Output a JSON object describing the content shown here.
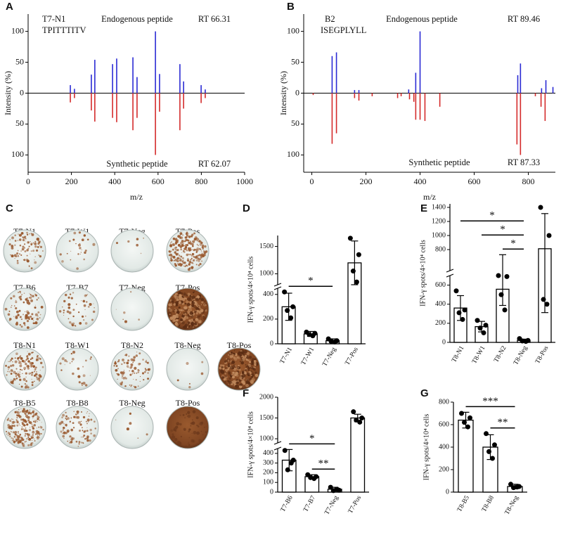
{
  "chart_data": [
    {
      "panel": "A",
      "type": "mirror",
      "label": "T7-N1",
      "sequence": "TPITTTITV",
      "top_label": "Endogenous peptide",
      "top_rt": "RT 66.31",
      "bottom_label": "Synthetic peptide",
      "bottom_rt": "RT 62.07",
      "x_label": "m/z",
      "y_label": "Intensity (%)",
      "xlim": [
        0,
        1000
      ],
      "xticks": [
        0,
        200,
        400,
        600,
        800,
        1000
      ],
      "ylim": [
        -128,
        128
      ],
      "yticks": [
        100,
        50,
        0,
        {
          "value": -50,
          "label": "50"
        },
        {
          "value": -100,
          "label": "100"
        }
      ],
      "series": [
        {
          "color": "#2a2ad4",
          "x": [
            195,
            214,
            292,
            308,
            390,
            409,
            484,
            503,
            588,
            607,
            701,
            718,
            799,
            818
          ],
          "values": [
            13,
            7,
            30,
            54,
            47,
            56,
            58,
            26,
            100,
            31,
            47,
            19,
            13,
            6
          ]
        },
        {
          "color": "#d42a2a",
          "x": [
            195,
            214,
            292,
            308,
            390,
            409,
            484,
            503,
            588,
            607,
            701,
            718,
            799,
            818
          ],
          "values": [
            -15,
            -8,
            -28,
            -46,
            -40,
            -47,
            -60,
            -40,
            -100,
            -30,
            -60,
            -25,
            -16,
            -8
          ]
        }
      ]
    },
    {
      "panel": "B",
      "type": "mirror",
      "label": "B2",
      "sequence": "ISEGPLYLL",
      "top_label": "Endogenous peptide",
      "top_rt": "RT 89.46",
      "bottom_label": "Synthetic peptide",
      "bottom_rt": "RT 87.33",
      "x_label": "m/z",
      "y_label": "Intensity (%)",
      "xlim": [
        -30,
        900
      ],
      "xticks": [
        0,
        200,
        400,
        600,
        800
      ],
      "ylim": [
        -128,
        128
      ],
      "yticks": [
        100,
        50,
        0,
        {
          "value": -50,
          "label": "50"
        },
        {
          "value": -100,
          "label": "100"
        }
      ],
      "series": [
        {
          "color": "#2a2ad4",
          "x": [
            75,
            91,
            158,
            174,
            358,
            384,
            400,
            761,
            771,
            849,
            865,
            891
          ],
          "values": [
            60,
            66,
            5,
            5,
            6,
            33,
            100,
            29,
            48,
            8,
            21,
            10
          ]
        },
        {
          "color": "#d42a2a",
          "x": [
            5,
            75,
            91,
            158,
            174,
            223,
            317,
            330,
            361,
            377,
            384,
            400,
            418,
            473,
            758,
            771,
            826,
            847,
            862
          ],
          "values": [
            -3,
            -82,
            -65,
            -8,
            -12,
            -5,
            -8,
            -5,
            -10,
            -14,
            -43,
            -43,
            -45,
            -22,
            -83,
            -100,
            -5,
            -22,
            -45
          ]
        }
      ]
    },
    {
      "panel": "D",
      "type": "bar",
      "y_label": "IFN-γ spots/4×10⁴ cells",
      "categories": [
        "T7-N1",
        "T7-W1",
        "T7-Neg",
        "T7-Pos"
      ],
      "values": [
        300,
        80,
        25,
        1200
      ],
      "errors": [
        110,
        20,
        15,
        400
      ],
      "points": [
        [
          420,
          300,
          270,
          210
        ],
        [
          95,
          85,
          75,
          65
        ],
        [
          40,
          25,
          20,
          15
        ],
        [
          1650,
          1350,
          1050,
          850
        ]
      ],
      "ylim": [
        [
          0,
          450
        ],
        [
          800,
          1700
        ]
      ],
      "yticks": [
        0,
        200,
        400,
        1000,
        1500
      ],
      "significance": [
        {
          "label": "*",
          "pair": [
            0,
            2
          ]
        }
      ]
    },
    {
      "panel": "E",
      "type": "bar",
      "y_label": "IFN-γ spots/4×10⁴ cells",
      "categories": [
        "T8-N1",
        "T8-W1",
        "T8-N2",
        "T8-Neg",
        "T8-Pos"
      ],
      "values": [
        360,
        165,
        557,
        21,
        812
      ],
      "errors": [
        130,
        55,
        170,
        13,
        500
      ],
      "points": [
        [
          540,
          340,
          310,
          240
        ],
        [
          230,
          180,
          150,
          100
        ],
        [
          700,
          690,
          500,
          340
        ],
        [
          40,
          20,
          15,
          10
        ],
        [
          1400,
          1000,
          450,
          400
        ]
      ],
      "ylim": [
        [
          0,
          700
        ],
        [
          500,
          1450
        ]
      ],
      "yticks": [
        0,
        200,
        400,
        600,
        800,
        1000,
        1200,
        1400
      ],
      "significance": [
        {
          "label": "*",
          "pair": [
            2,
            3
          ]
        },
        {
          "label": "*",
          "pair": [
            1,
            3
          ]
        },
        {
          "label": "*",
          "pair": [
            0,
            3
          ]
        }
      ]
    },
    {
      "panel": "F",
      "type": "bar",
      "y_label": "IFN-γ spots/4×10⁴ cells",
      "categories": [
        "T7-B6",
        "T7-B7",
        "T7-Neg",
        "T7-Pos"
      ],
      "values": [
        330,
        160,
        30,
        1500
      ],
      "errors": [
        110,
        20,
        20,
        90
      ],
      "points": [
        [
          430,
          330,
          230,
          300
        ],
        [
          180,
          160,
          150,
          140
        ],
        [
          50,
          20,
          15,
          30
        ],
        [
          1650,
          1500,
          1450,
          1400
        ]
      ],
      "ylim": [
        [
          0,
          450
        ],
        [
          900,
          2000
        ]
      ],
      "yticks": [
        0,
        100,
        200,
        300,
        400,
        1000,
        1500,
        2000
      ],
      "significance": [
        {
          "label": "**",
          "pair": [
            1,
            2
          ]
        },
        {
          "label": "*",
          "pair": [
            0,
            2
          ]
        }
      ]
    },
    {
      "panel": "G",
      "type": "bar",
      "y_label": "IFN-γ spots/4×10⁴ cells",
      "categories": [
        "T8-B5",
        "T8-B8",
        "T8-Neg"
      ],
      "values": [
        640,
        400,
        50
      ],
      "errors": [
        70,
        110,
        20
      ],
      "points": [
        [
          700,
          660,
          620,
          580
        ],
        [
          520,
          420,
          360,
          300
        ],
        [
          70,
          50,
          40,
          45
        ]
      ],
      "ylim": [
        0,
        800
      ],
      "yticks": [
        0,
        200,
        400,
        600,
        800
      ],
      "significance": [
        {
          "label": "**",
          "pair": [
            1,
            2
          ]
        },
        {
          "label": "***",
          "pair": [
            0,
            2
          ]
        }
      ]
    }
  ],
  "panel_c": {
    "panel": "C",
    "rows": [
      [
        "T7-N1",
        "T7-W1",
        "T7-Neg",
        "T7-Pos"
      ],
      [
        "T7-B6",
        "T7-B7",
        "T7-Neg",
        "T7-Pos"
      ],
      [
        "T8-N1",
        "T8-W1",
        "T8-N2",
        "T8-Neg",
        "T8-Pos"
      ],
      [
        "T8-B5",
        "T8-B8",
        "T8-Neg",
        "T8-Pos"
      ]
    ]
  }
}
